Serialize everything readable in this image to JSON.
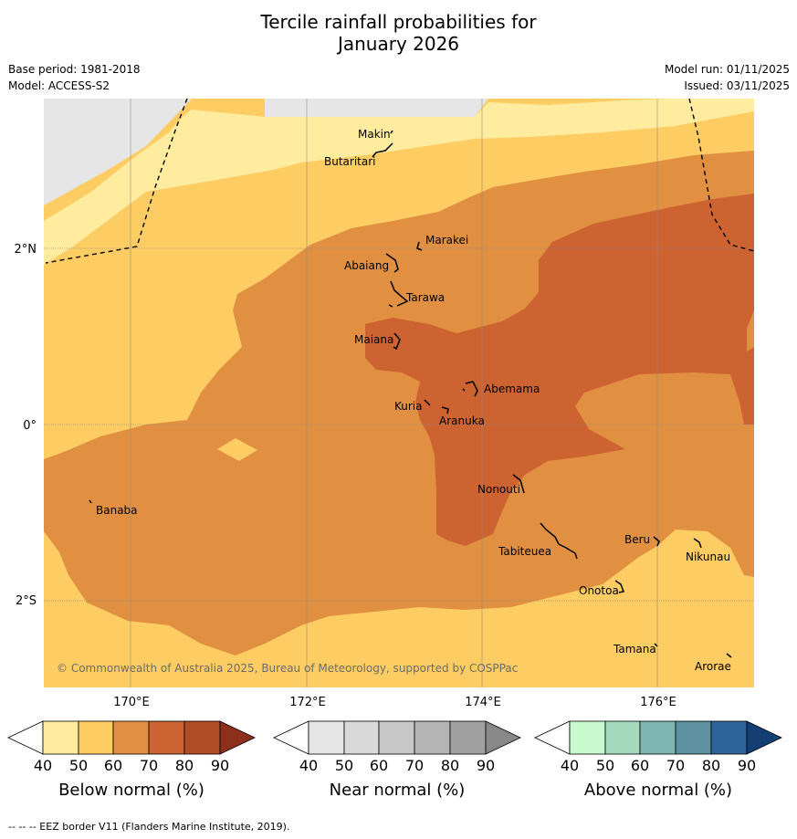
{
  "header": {
    "title_line1": "Tercile rainfall probabilities for",
    "title_line2": "January 2026",
    "base_period": "Base period: 1981-2018",
    "model": "Model: ACCESS-S2",
    "model_run": "Model run: 01/11/2025",
    "issued": "Issued: 03/11/2025"
  },
  "map": {
    "lat_labels": [
      "2°N",
      "0°",
      "2°S"
    ],
    "lon_labels": [
      "170°E",
      "172°E",
      "174°E",
      "176°E"
    ],
    "places": [
      "Makin",
      "Butaritari",
      "Marakei",
      "Abaiang",
      "Tarawa",
      "Maiana",
      "Abemama",
      "Kuria",
      "Aranuka",
      "Banaba",
      "Nonouti",
      "Tabiteuea",
      "Beru",
      "Nikunau",
      "Onotoa",
      "Tamana",
      "Arorae"
    ],
    "copyright": "© Commonwealth of Australia 2025, Bureau of Meteorology, supported by COSPPac",
    "colors": {
      "below_50": "#ffec9e",
      "below_60": "#fdcc63",
      "below_70": "#e19042",
      "below_80": "#cd6331",
      "no_data": "#e6e6e6"
    }
  },
  "colorbars": [
    {
      "label": "Below normal (%)",
      "ticks": [
        "40",
        "50",
        "60",
        "70",
        "80",
        "90"
      ],
      "colors": [
        "#ffec9e",
        "#fdcc63",
        "#e19042",
        "#cd6331",
        "#b04d29",
        "#8e2f1c"
      ]
    },
    {
      "label": "Near normal (%)",
      "ticks": [
        "40",
        "50",
        "60",
        "70",
        "80",
        "90"
      ],
      "colors": [
        "#e6e6e6",
        "#d9d9d9",
        "#c8c8c8",
        "#b4b4b4",
        "#a0a0a0",
        "#888888"
      ]
    },
    {
      "label": "Above normal (%)",
      "ticks": [
        "40",
        "50",
        "60",
        "70",
        "80",
        "90"
      ],
      "colors": [
        "#c8f9cf",
        "#a5d9bd",
        "#7eb6b1",
        "#5d91a0",
        "#2f6499",
        "#143f75"
      ]
    }
  ],
  "footnote": "--  --  -- EEZ border V11 (Flanders Marine Institute, 2019)."
}
